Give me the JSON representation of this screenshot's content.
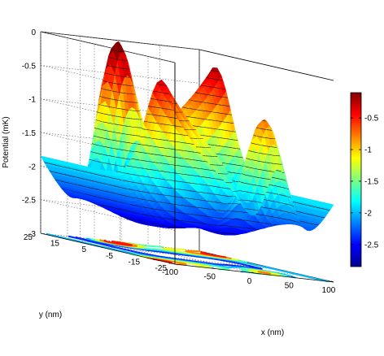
{
  "chart_data": {
    "type": "surface",
    "title": "",
    "zlabel": "Potential (mK)",
    "xlabel": "x (nm)",
    "ylabel": "y (nm)",
    "xlim": [
      -100,
      100
    ],
    "ylim": [
      -25,
      25
    ],
    "zlim": [
      -3,
      0
    ],
    "x_ticks": [
      -100,
      -50,
      0,
      50,
      100
    ],
    "x_tick_labels": [
      "-100",
      "-50",
      "0",
      "50",
      "100"
    ],
    "y_ticks": [
      -25,
      -15,
      -5,
      5,
      15,
      25
    ],
    "y_tick_labels": [
      "-25",
      "-15",
      "-5",
      "5",
      "15",
      "25"
    ],
    "z_ticks": [
      -3,
      -2.5,
      -2,
      -1.5,
      -1,
      -0.5,
      0
    ],
    "z_tick_labels": [
      "-3",
      "-2.5",
      "-2",
      "-1.5",
      "-1",
      "-0.5",
      "0"
    ],
    "grid": true,
    "colormap": "jet",
    "colorbar": {
      "range": [
        -2.85,
        -0.1
      ],
      "ticks": [
        -2.5,
        -2,
        -1.5,
        -1,
        -0.5
      ],
      "tick_labels": [
        "-2.5",
        "-2",
        "-1.5",
        "-1",
        "-0.5"
      ]
    },
    "contour_projection": "floor"
  }
}
